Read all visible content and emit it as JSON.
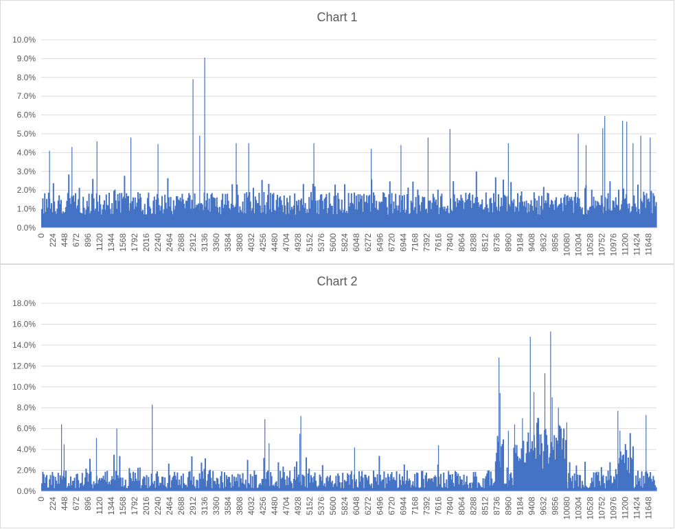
{
  "chart_data": [
    {
      "type": "bar",
      "title": "Chart 1",
      "xlabel": "",
      "ylabel": "",
      "ylim": [
        0,
        10
      ],
      "yticks": [
        "0.0%",
        "1.0%",
        "2.0%",
        "3.0%",
        "4.0%",
        "5.0%",
        "6.0%",
        "7.0%",
        "8.0%",
        "9.0%",
        "10.0%"
      ],
      "xticks": [
        "0",
        "224",
        "448",
        "672",
        "896",
        "1120",
        "1344",
        "1568",
        "1792",
        "2016",
        "2240",
        "2464",
        "2688",
        "2912",
        "3136",
        "3360",
        "3584",
        "3808",
        "4032",
        "4256",
        "4480",
        "4704",
        "4928",
        "5152",
        "5376",
        "5600",
        "5824",
        "6048",
        "6272",
        "6496",
        "6720",
        "6944",
        "7168",
        "7392",
        "7616",
        "7840",
        "8064",
        "8288",
        "8512",
        "8736",
        "8960",
        "9184",
        "9408",
        "9632",
        "9856",
        "10080",
        "10304",
        "10528",
        "10752",
        "10976",
        "11200",
        "11424",
        "11648"
      ],
      "x_range": [
        0,
        11800
      ],
      "grid": true,
      "color": "#4472C4",
      "baseline": 1.3,
      "noise": 0.6,
      "peaks": [
        [
          2912,
          7.9
        ],
        [
          3040,
          4.9
        ],
        [
          3136,
          9.05
        ],
        [
          1070,
          4.6
        ],
        [
          1720,
          4.8
        ],
        [
          160,
          4.1
        ],
        [
          590,
          4.3
        ],
        [
          2240,
          4.45
        ],
        [
          3740,
          4.5
        ],
        [
          3980,
          4.5
        ],
        [
          5230,
          4.5
        ],
        [
          6330,
          4.2
        ],
        [
          6900,
          4.4
        ],
        [
          7420,
          4.8
        ],
        [
          7840,
          5.25
        ],
        [
          8960,
          4.5
        ],
        [
          10300,
          5.0
        ],
        [
          10450,
          4.4
        ],
        [
          10808,
          5.95
        ],
        [
          10770,
          5.3
        ],
        [
          11150,
          5.7
        ],
        [
          11230,
          5.65
        ],
        [
          11680,
          4.8
        ],
        [
          11500,
          4.9
        ],
        [
          11350,
          4.5
        ]
      ]
    },
    {
      "type": "bar",
      "title": "Chart 2",
      "xlabel": "",
      "ylabel": "",
      "ylim": [
        0,
        18
      ],
      "yticks": [
        "0.0%",
        "2.0%",
        "4.0%",
        "6.0%",
        "8.0%",
        "10.0%",
        "12.0%",
        "14.0%",
        "16.0%",
        "18.0%"
      ],
      "xticks": [
        "0",
        "224",
        "448",
        "672",
        "896",
        "1120",
        "1344",
        "1568",
        "1792",
        "2016",
        "2240",
        "2464",
        "2688",
        "2912",
        "3136",
        "3360",
        "3584",
        "3808",
        "4032",
        "4256",
        "4480",
        "4704",
        "4928",
        "5152",
        "5376",
        "5600",
        "5824",
        "6048",
        "6272",
        "6496",
        "6720",
        "6944",
        "7168",
        "7392",
        "7616",
        "7840",
        "8064",
        "8288",
        "8512",
        "8736",
        "8960",
        "9184",
        "9408",
        "9632",
        "9856",
        "10080",
        "10304",
        "10528",
        "10752",
        "10976",
        "11200",
        "11424",
        "11648"
      ],
      "x_range": [
        0,
        11800
      ],
      "grid": true,
      "color": "#4472C4",
      "baseline": 1.1,
      "noise": 0.9,
      "peaks": [
        [
          390,
          6.4
        ],
        [
          440,
          4.5
        ],
        [
          1060,
          5.1
        ],
        [
          1450,
          6.0
        ],
        [
          2130,
          8.3
        ],
        [
          4290,
          6.9
        ],
        [
          4370,
          4.6
        ],
        [
          4980,
          7.2
        ],
        [
          4960,
          5.5
        ],
        [
          6010,
          4.2
        ],
        [
          7620,
          4.4
        ],
        [
          8780,
          12.8
        ],
        [
          8800,
          9.4
        ],
        [
          8960,
          5.8
        ],
        [
          9080,
          6.4
        ],
        [
          9230,
          7.0
        ],
        [
          9380,
          14.8
        ],
        [
          9450,
          9.5
        ],
        [
          9540,
          7.0
        ],
        [
          9660,
          11.3
        ],
        [
          9770,
          15.3
        ],
        [
          9800,
          9.0
        ],
        [
          9920,
          8.0
        ],
        [
          10080,
          6.6
        ],
        [
          11060,
          7.7
        ],
        [
          11100,
          5.8
        ],
        [
          11600,
          7.3
        ]
      ],
      "regions": [
        [
          8700,
          8850,
          3.0
        ],
        [
          9050,
          10050,
          3.5
        ],
        [
          11050,
          11350,
          2.2
        ]
      ]
    }
  ]
}
